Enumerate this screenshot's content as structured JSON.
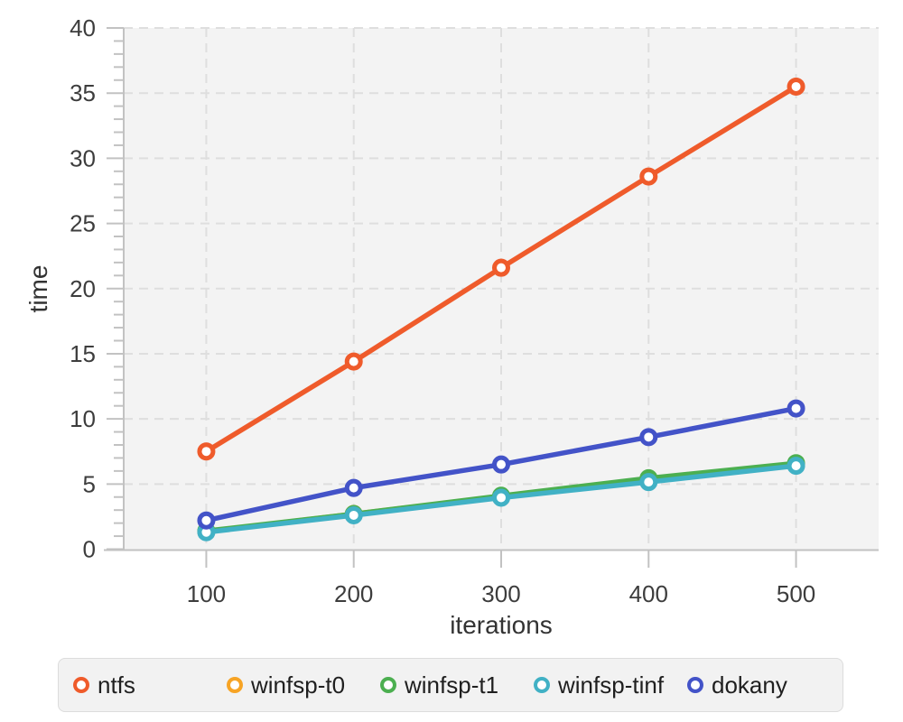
{
  "chart_data": {
    "type": "line",
    "title": "",
    "xlabel": "iterations",
    "ylabel": "time",
    "x": [
      100,
      200,
      300,
      400,
      500
    ],
    "xlim": [
      44,
      556
    ],
    "ylim": [
      0,
      40
    ],
    "y_major_ticks": [
      0,
      5,
      10,
      15,
      20,
      25,
      30,
      35,
      40
    ],
    "y_minor_step": 1,
    "x_ticks": [
      100,
      200,
      300,
      400,
      500
    ],
    "grid": "dashed",
    "legend_position": "bottom",
    "series": [
      {
        "name": "ntfs",
        "color": "#ef5b2b",
        "values": [
          7.5,
          14.4,
          21.6,
          28.6,
          35.5
        ]
      },
      {
        "name": "winfsp-t0",
        "color": "#f7a425",
        "values": [
          1.35,
          2.7,
          4.05,
          5.25,
          6.5
        ]
      },
      {
        "name": "winfsp-t1",
        "color": "#4caf50",
        "values": [
          1.4,
          2.7,
          4.1,
          5.45,
          6.6
        ]
      },
      {
        "name": "winfsp-tinf",
        "color": "#41b1c5",
        "values": [
          1.3,
          2.6,
          3.95,
          5.15,
          6.4
        ]
      },
      {
        "name": "dokany",
        "color": "#4353c8",
        "values": [
          2.2,
          4.7,
          6.5,
          8.6,
          10.8
        ]
      }
    ],
    "draw_order": [
      "winfsp-t0",
      "winfsp-t1",
      "winfsp-tinf",
      "dokany",
      "ntfs"
    ]
  },
  "colors": {
    "plot_bg": "#f3f3f3",
    "grid": "#dedede",
    "axis": "#c2c2c2",
    "tick_label": "#3d3d3d",
    "axis_label": "#333333",
    "legend_bg": "#f2f2f2",
    "legend_border": "#dcdcdc",
    "legend_text": "#1f1f1f"
  }
}
